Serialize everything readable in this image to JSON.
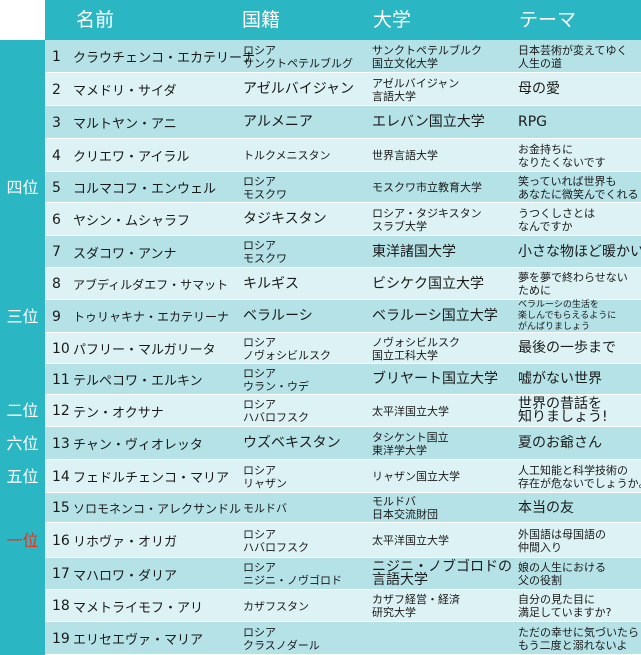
{
  "header": {
    "name": "名前",
    "nationality": "国籍",
    "university": "大学",
    "theme": "テーマ"
  },
  "ranks": [
    {
      "label": "四位",
      "row": 5
    },
    {
      "label": "三位",
      "row": 9
    },
    {
      "label": "二位",
      "row": 12
    },
    {
      "label": "六位",
      "row": 13
    },
    {
      "label": "五位",
      "row": 14
    },
    {
      "label": "一位",
      "row": 16,
      "color": "#e8321e"
    }
  ],
  "rows": [
    {
      "no": "1",
      "name": "クラウチェンコ・エカテリーナ",
      "nationality": [
        "ロシア",
        "サンクトペテルブルグ"
      ],
      "university": [
        "サンクトペテルブルク",
        "国立文化大学"
      ],
      "theme": [
        "日本芸術が変えてゆく",
        "人生の道"
      ]
    },
    {
      "no": "2",
      "name": "マメドリ・サイダ",
      "nationality": [
        "アゼルバイジャン"
      ],
      "university": [
        "アゼルバイジャン",
        "言語大学"
      ],
      "theme": [
        "母の愛"
      ]
    },
    {
      "no": "3",
      "name": "マルトヤン・アニ",
      "nationality": [
        "アルメニア"
      ],
      "university": [
        "エレバン国立大学"
      ],
      "theme": [
        "RPG"
      ]
    },
    {
      "no": "4",
      "name": "クリエワ・アイラル",
      "nationality": [
        "トルクメニスタン"
      ],
      "university": [
        "世界言語大学"
      ],
      "theme": [
        "お金持ちに",
        "なりたくないです"
      ]
    },
    {
      "no": "5",
      "name": "コルマコフ・エンウェル",
      "nationality": [
        "ロシア",
        "モスクワ"
      ],
      "university": [
        "モスクワ市立教育大学"
      ],
      "theme": [
        "笑っていれば世界も",
        "あなたに微笑んでくれる"
      ]
    },
    {
      "no": "6",
      "name": "ヤシン・ムシャラフ",
      "nationality": [
        "タジキスタン"
      ],
      "university": [
        "ロシア・タジキスタン",
        "スラブ大学"
      ],
      "theme": [
        "うつくしさとは",
        "なんですか"
      ]
    },
    {
      "no": "7",
      "name": "スダコワ・アンナ",
      "nationality": [
        "ロシア",
        "モスクワ"
      ],
      "university": [
        "東洋諸国大学"
      ],
      "theme": [
        "小さな物ほど暖かい"
      ]
    },
    {
      "no": "8",
      "name": "アブディルダエフ・サマット",
      "nationality": [
        "キルギス"
      ],
      "university": [
        "ビシケク国立大学"
      ],
      "theme": [
        "夢を夢で終わらせない",
        "ために"
      ]
    },
    {
      "no": "9",
      "name": "トゥリャキナ・エカテリーナ",
      "nationality": [
        "ベラルーシ"
      ],
      "university": [
        "ベラルーシ国立大学"
      ],
      "theme": [
        "ベラルーシの生活を",
        "楽しんでもらえるように",
        "がんばりましょう"
      ]
    },
    {
      "no": "10",
      "name": "パフリー・マルガリータ",
      "nationality": [
        "ロシア",
        "ノヴォシビルスク"
      ],
      "university": [
        "ノヴォシビルスク",
        "国立工科大学"
      ],
      "theme": [
        "最後の一歩まで"
      ]
    },
    {
      "no": "11",
      "name": "テルペコワ・エルキン",
      "nationality": [
        "ロシア",
        "ウラン・ウデ"
      ],
      "university": [
        "ブリヤート国立大学"
      ],
      "theme": [
        "嘘がない世界"
      ]
    },
    {
      "no": "12",
      "name": "テン・オクサナ",
      "nationality": [
        "ロシア",
        "ハバロフスク"
      ],
      "university": [
        "太平洋国立大学"
      ],
      "theme": [
        "世界の昔話を",
        "知りましょう!"
      ]
    },
    {
      "no": "13",
      "name": "チャン・ヴィオレッタ",
      "nationality": [
        "ウズベキスタン"
      ],
      "university": [
        "タシケント国立",
        "東洋学大学"
      ],
      "theme": [
        "夏のお爺さん"
      ]
    },
    {
      "no": "14",
      "name": "フェドルチェンコ・マリア",
      "nationality": [
        "ロシア",
        "リャザン"
      ],
      "university": [
        "リャザン国立大学"
      ],
      "theme": [
        "人工知能と科学技術の",
        "存在が危ないでしょうか。"
      ]
    },
    {
      "no": "15",
      "name": "ソロモネンコ・アレクサンドル",
      "nationality": [
        "モルドバ"
      ],
      "university": [
        "モルドバ",
        "日本交流財団"
      ],
      "theme": [
        "本当の友"
      ]
    },
    {
      "no": "16",
      "name": "リホヴァ・オリガ",
      "nationality": [
        "ロシア",
        "ハバロフスク"
      ],
      "university": [
        "太平洋国立大学"
      ],
      "theme": [
        "外国語は母国語の",
        "仲間入り"
      ]
    },
    {
      "no": "17",
      "name": "マハロワ・ダリア",
      "nationality": [
        "ロシア",
        "ニジニ・ノヴゴロド"
      ],
      "university": [
        "ニジニ・ノブゴロドの",
        "言語大学"
      ],
      "theme": [
        "娘の人生における",
        "父の役割"
      ]
    },
    {
      "no": "18",
      "name": "マメトライモフ・アリ",
      "nationality": [
        "カザフスタン"
      ],
      "university": [
        "カザフ経営・経済",
        "研究大学"
      ],
      "theme": [
        "自分の見た目に",
        "満足していますか?"
      ]
    },
    {
      "no": "19",
      "name": "エリセエヴァ・マリア",
      "nationality": [
        "ロシア",
        "クラスノダール"
      ],
      "university": [],
      "theme": [
        "ただの幸せに気づいたら",
        "もう二度と溺れないよ"
      ]
    }
  ]
}
